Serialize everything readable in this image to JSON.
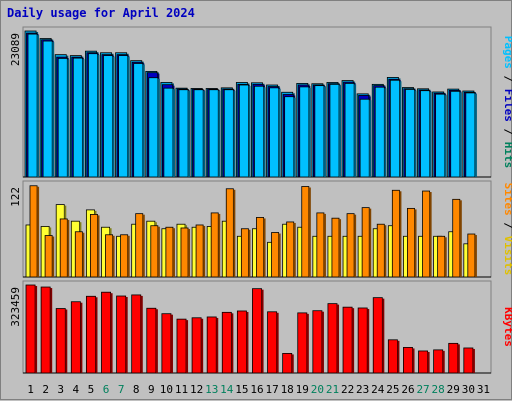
{
  "title": "Daily usage for April 2024",
  "colors": {
    "background": "#c0c0c0",
    "pages": "#00c0ff",
    "pages_back": "#0000c0",
    "visits": "#ffff33",
    "sites": "#ff8800",
    "kbytes": "#ff0000",
    "weekend_label": "#00805c",
    "weekday_label": "#000000",
    "title": "#0000c0"
  },
  "chart_data": [
    {
      "type": "bar",
      "panel": "hits",
      "ytick_label": "23089",
      "ymax": 23089,
      "legend": [
        "Pages",
        "Files",
        "Hits"
      ],
      "categories": [
        "1",
        "2",
        "3",
        "4",
        "5",
        "6",
        "7",
        "8",
        "9",
        "10",
        "11",
        "12",
        "13",
        "14",
        "15",
        "16",
        "17",
        "18",
        "19",
        "20",
        "21",
        "22",
        "23",
        "24",
        "25",
        "26",
        "27",
        "28",
        "29",
        "30",
        "31"
      ],
      "weekend_days": [
        6,
        7,
        13,
        14,
        20,
        21,
        27,
        28
      ],
      "series": [
        {
          "name": "Hits",
          "values": [
            23089,
            21900,
            19350,
            19200,
            19900,
            19650,
            19650,
            18400,
            16700,
            14950,
            14050,
            14000,
            14000,
            14100,
            14950,
            14900,
            14550,
            13400,
            14800,
            14750,
            14950,
            15250,
            13150,
            14650,
            15750,
            14150,
            13950,
            13450,
            13900,
            13600,
            0
          ]
        },
        {
          "name": "Files",
          "values": [
            22750,
            21700,
            18950,
            18950,
            19650,
            19350,
            19350,
            18150,
            16500,
            14600,
            13900,
            13900,
            13900,
            13900,
            14650,
            14650,
            14300,
            13050,
            14550,
            14550,
            14750,
            15000,
            12900,
            14450,
            15450,
            13950,
            13750,
            13250,
            13700,
            13400,
            0
          ]
        },
        {
          "name": "Pages",
          "values": [
            22600,
            21500,
            18750,
            18800,
            19500,
            19200,
            19200,
            17950,
            15700,
            14050,
            13800,
            13800,
            13800,
            13800,
            14550,
            14350,
            14100,
            12700,
            14250,
            14450,
            14650,
            14800,
            12300,
            14200,
            15300,
            13850,
            13650,
            13100,
            13550,
            13300,
            0
          ]
        }
      ]
    },
    {
      "type": "bar",
      "panel": "visits",
      "ytick_label": "122",
      "ymax": 122,
      "legend": [
        "Sites",
        "Visits"
      ],
      "categories": [
        "1",
        "2",
        "3",
        "4",
        "5",
        "6",
        "7",
        "8",
        "9",
        "10",
        "11",
        "12",
        "13",
        "14",
        "15",
        "16",
        "17",
        "18",
        "19",
        "20",
        "21",
        "22",
        "23",
        "24",
        "25",
        "26",
        "27",
        "28",
        "29",
        "30",
        "31"
      ],
      "series": [
        {
          "name": "Visits",
          "values": [
            69,
            67,
            96,
            74,
            89,
            66,
            54,
            70,
            74,
            64,
            70,
            66,
            67,
            74,
            54,
            64,
            46,
            70,
            66,
            54,
            54,
            54,
            54,
            64,
            68,
            54,
            54,
            54,
            60,
            44,
            0
          ]
        },
        {
          "name": "Sites",
          "values": [
            121,
            55,
            77,
            60,
            83,
            56,
            56,
            84,
            68,
            66,
            65,
            69,
            85,
            117,
            64,
            79,
            59,
            73,
            120,
            85,
            78,
            84,
            92,
            70,
            115,
            91,
            114,
            54,
            103,
            57,
            0
          ]
        }
      ]
    },
    {
      "type": "bar",
      "panel": "kbytes",
      "ytick_label": "323459",
      "ymax": 323459,
      "legend": [
        "KBytes"
      ],
      "categories": [
        "1",
        "2",
        "3",
        "4",
        "5",
        "6",
        "7",
        "8",
        "9",
        "10",
        "11",
        "12",
        "13",
        "14",
        "15",
        "16",
        "17",
        "18",
        "19",
        "20",
        "21",
        "22",
        "23",
        "24",
        "25",
        "26",
        "27",
        "28",
        "29",
        "30",
        "31"
      ],
      "series": [
        {
          "name": "KBytes",
          "values": [
            323459,
            316000,
            237000,
            262000,
            282000,
            297000,
            283000,
            287000,
            238000,
            218000,
            198000,
            203000,
            206000,
            223000,
            228000,
            310000,
            225000,
            72000,
            221000,
            229000,
            255000,
            242000,
            239000,
            277000,
            122000,
            94000,
            81000,
            85000,
            109000,
            92000,
            0
          ]
        }
      ]
    }
  ]
}
